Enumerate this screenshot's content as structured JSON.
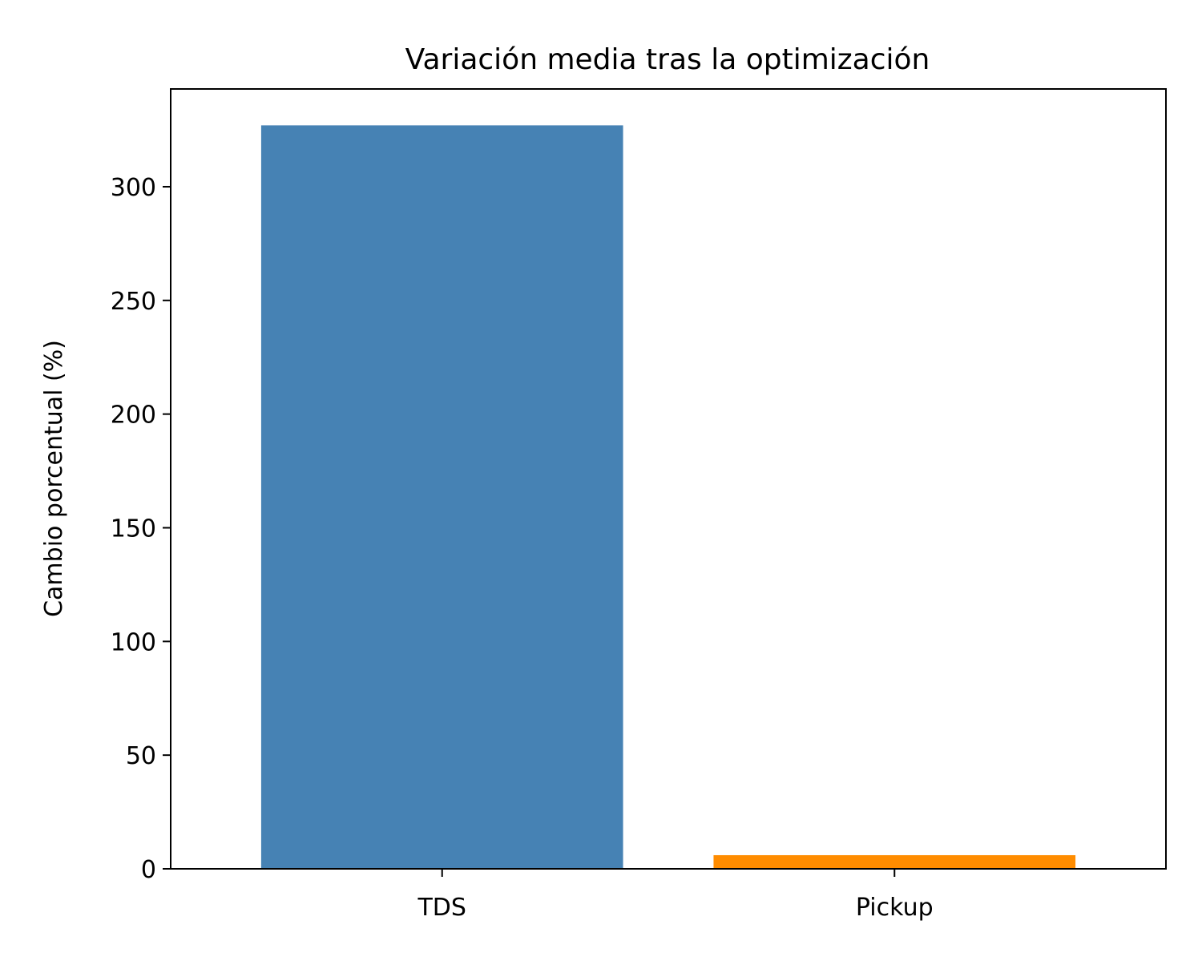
{
  "chart_data": {
    "type": "bar",
    "title": "Variación media tras la optimización",
    "xlabel": "",
    "ylabel": "Cambio porcentual (%)",
    "categories": [
      "TDS",
      "Pickup"
    ],
    "values": [
      327,
      6
    ],
    "colors": [
      "#4682b4",
      "#ff8c00"
    ],
    "ylim": [
      0,
      343
    ],
    "yticks": [
      0,
      50,
      100,
      150,
      200,
      250,
      300
    ],
    "grid": false,
    "legend": "none"
  }
}
